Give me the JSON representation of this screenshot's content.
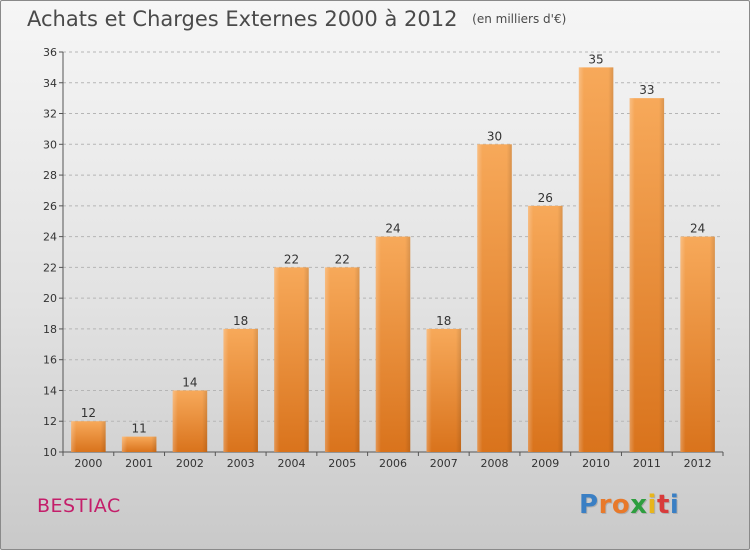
{
  "header": {
    "title": "Achats et Charges Externes 2000 à 2012",
    "subtitle": "(en milliers d'€)"
  },
  "footer": {
    "commune": "BESTIAC",
    "logo_letters": [
      {
        "ch": "P",
        "color": "#3a7fc4"
      },
      {
        "ch": "r",
        "color": "#e8792a"
      },
      {
        "ch": "o",
        "color": "#e8792a"
      },
      {
        "ch": "x",
        "color": "#2e9e3f"
      },
      {
        "ch": "i",
        "color": "#e8b51c"
      },
      {
        "ch": "t",
        "color": "#d83b3b"
      },
      {
        "ch": "i",
        "color": "#3a7fc4"
      }
    ]
  },
  "chart_data": {
    "type": "bar",
    "categories": [
      "2000",
      "2001",
      "2002",
      "2003",
      "2004",
      "2005",
      "2006",
      "2007",
      "2008",
      "2009",
      "2010",
      "2011",
      "2012"
    ],
    "values": [
      12,
      11,
      14,
      18,
      22,
      22,
      24,
      18,
      30,
      26,
      35,
      33,
      24
    ],
    "ylim": [
      10,
      36
    ],
    "yticks": [
      10,
      12,
      14,
      16,
      18,
      20,
      22,
      24,
      26,
      28,
      30,
      32,
      34,
      36
    ],
    "grid": true,
    "bar_color": "#f0902f"
  }
}
